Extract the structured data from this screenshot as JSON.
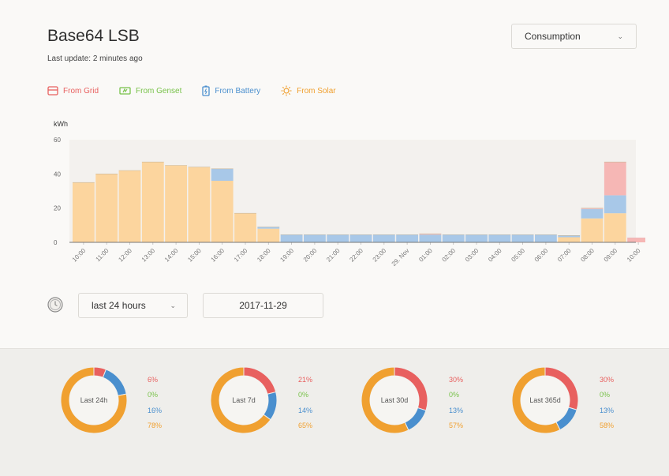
{
  "header": {
    "title": "Base64 LSB",
    "last_update": "Last update: 2 minutes ago",
    "view_select": "Consumption"
  },
  "legend": [
    {
      "label": "From Grid",
      "color": "#e8605f",
      "icon": "grid-icon"
    },
    {
      "label": "From Genset",
      "color": "#78c24a",
      "icon": "genset-icon"
    },
    {
      "label": "From Battery",
      "color": "#4a8fce",
      "icon": "battery-icon"
    },
    {
      "label": "From Solar",
      "color": "#f0a030",
      "icon": "solar-icon"
    }
  ],
  "chart_data": {
    "type": "bar",
    "stacked": true,
    "ylabel": "kWh",
    "ylim": [
      0,
      60
    ],
    "yticks": [
      0,
      20,
      40,
      60
    ],
    "grid": false,
    "categories": [
      "10:00",
      "11:00",
      "12:00",
      "13:00",
      "14:00",
      "15:00",
      "16:00",
      "17:00",
      "18:00",
      "19:00",
      "20:00",
      "21:00",
      "22:00",
      "23:00",
      "29. Nov",
      "01:00",
      "02:00",
      "03:00",
      "04:00",
      "05:00",
      "06:00",
      "07:00",
      "08:00",
      "09:00",
      "10:00"
    ],
    "series": [
      {
        "name": "From Solar",
        "color": "#fcd59e",
        "values": [
          35,
          40,
          42,
          47,
          45,
          44,
          36,
          17,
          8,
          0,
          0,
          0,
          0,
          0,
          0,
          0,
          0,
          0,
          0,
          0,
          0,
          3,
          14,
          17,
          0
        ]
      },
      {
        "name": "From Battery",
        "color": "#a8c8e8",
        "values": [
          0,
          0,
          0,
          0,
          0,
          0,
          7,
          0,
          1,
          4.5,
          4.5,
          4.5,
          4.5,
          4.5,
          4.5,
          4.5,
          4.5,
          4.5,
          4.5,
          4.5,
          4.5,
          1,
          5.5,
          10.5,
          0
        ]
      },
      {
        "name": "From Grid",
        "color": "#f6b7b5",
        "values": [
          0,
          0,
          0,
          0,
          0,
          0,
          0,
          0,
          0,
          0,
          0,
          0,
          0,
          0,
          0,
          0.5,
          0,
          0,
          0,
          0,
          0,
          0,
          0.5,
          19.5,
          2.5
        ]
      }
    ]
  },
  "controls": {
    "range_select": "last 24 hours",
    "date_value": "2017-11-29",
    "clock_icon": "clock-icon"
  },
  "summaries": [
    {
      "label": "Last 24h",
      "grid": "6%",
      "genset": "0%",
      "battery": "16%",
      "solar": "78%",
      "values": [
        6,
        0,
        16,
        78
      ]
    },
    {
      "label": "Last 7d",
      "grid": "21%",
      "genset": "0%",
      "battery": "14%",
      "solar": "65%",
      "values": [
        21,
        0,
        14,
        65
      ]
    },
    {
      "label": "Last 30d",
      "grid": "30%",
      "genset": "0%",
      "battery": "13%",
      "solar": "57%",
      "values": [
        30,
        0,
        13,
        57
      ]
    },
    {
      "label": "Last 365d",
      "grid": "30%",
      "genset": "0%",
      "battery": "13%",
      "solar": "58%",
      "values": [
        30,
        0,
        13,
        58
      ]
    }
  ],
  "colors": {
    "grid": "#e8605f",
    "genset": "#78c24a",
    "battery": "#4a8fce",
    "solar": "#f0a030"
  }
}
